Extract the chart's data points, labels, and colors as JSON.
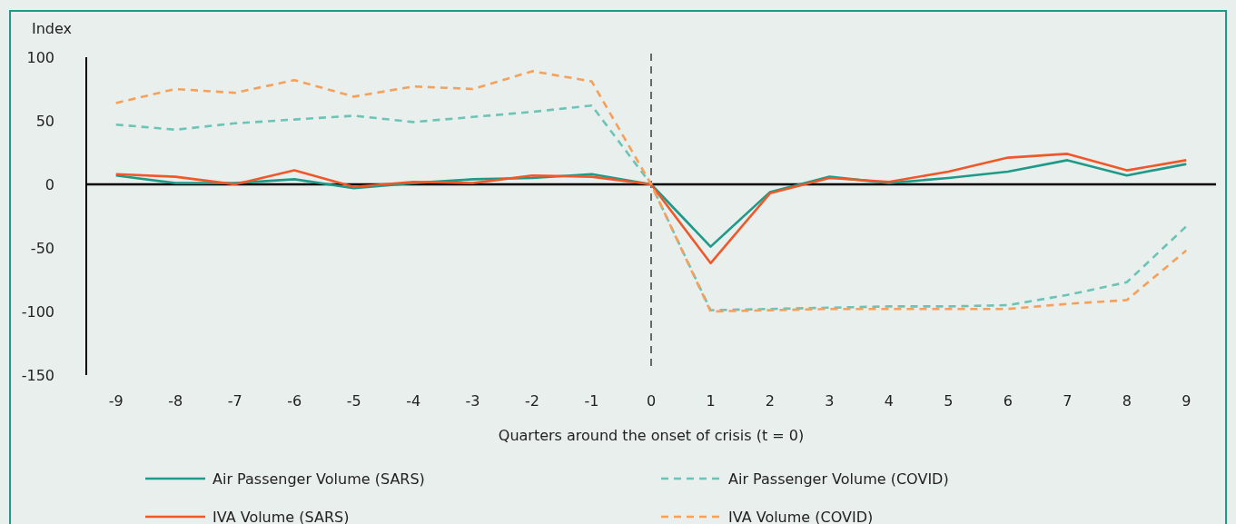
{
  "chart_data": {
    "type": "line",
    "ylabel": "Index",
    "xlabel": "Quarters around the onset of crisis (t = 0)",
    "x": [
      -9,
      -8,
      -7,
      -6,
      -5,
      -4,
      -3,
      -2,
      -1,
      0,
      1,
      2,
      3,
      4,
      5,
      6,
      7,
      8,
      9
    ],
    "xlim": [
      -9.5,
      9.5
    ],
    "xticks": [
      -9,
      -8,
      -7,
      -6,
      -5,
      -4,
      -3,
      -2,
      -1,
      0,
      1,
      2,
      3,
      4,
      5,
      6,
      7,
      8,
      9
    ],
    "ylim": [
      -150,
      100
    ],
    "yticks": [
      -150,
      -100,
      -50,
      0,
      50,
      100
    ],
    "grid": false,
    "legend": "bottom",
    "marker": "none",
    "ref_lines": [
      {
        "axis": "x",
        "value": 0,
        "label": null,
        "color": "#222222",
        "line_style": "dashed"
      }
    ],
    "series": [
      {
        "name": "Air Passenger Volume (SARS)",
        "color": "#1f9a88",
        "line_style": "solid",
        "values": [
          7,
          1,
          1,
          4,
          -3,
          1,
          4,
          5,
          8,
          0,
          -49,
          -6,
          6,
          1,
          5,
          10,
          19,
          7,
          16
        ]
      },
      {
        "name": "Air Passenger Volume (COVID)",
        "color": "#6cc4b6",
        "line_style": "dashed",
        "values": [
          47,
          43,
          48,
          51,
          54,
          49,
          53,
          57,
          62,
          0,
          -99,
          -98,
          -97,
          -96,
          -96,
          -95,
          -87,
          -77,
          -33
        ]
      },
      {
        "name": "IVA Volume (SARS)",
        "color": "#f0582a",
        "line_style": "solid",
        "values": [
          8,
          6,
          0,
          11,
          -2,
          2,
          1,
          7,
          6,
          0,
          -62,
          -7,
          5,
          2,
          10,
          21,
          24,
          11,
          19
        ]
      },
      {
        "name": "IVA Volume (COVID)",
        "color": "#f7a05a",
        "line_style": "dashed",
        "values": [
          64,
          75,
          72,
          82,
          69,
          77,
          75,
          89,
          81,
          0,
          -100,
          -99,
          -98,
          -98,
          -98,
          -98,
          -94,
          -91,
          -52
        ]
      }
    ]
  }
}
